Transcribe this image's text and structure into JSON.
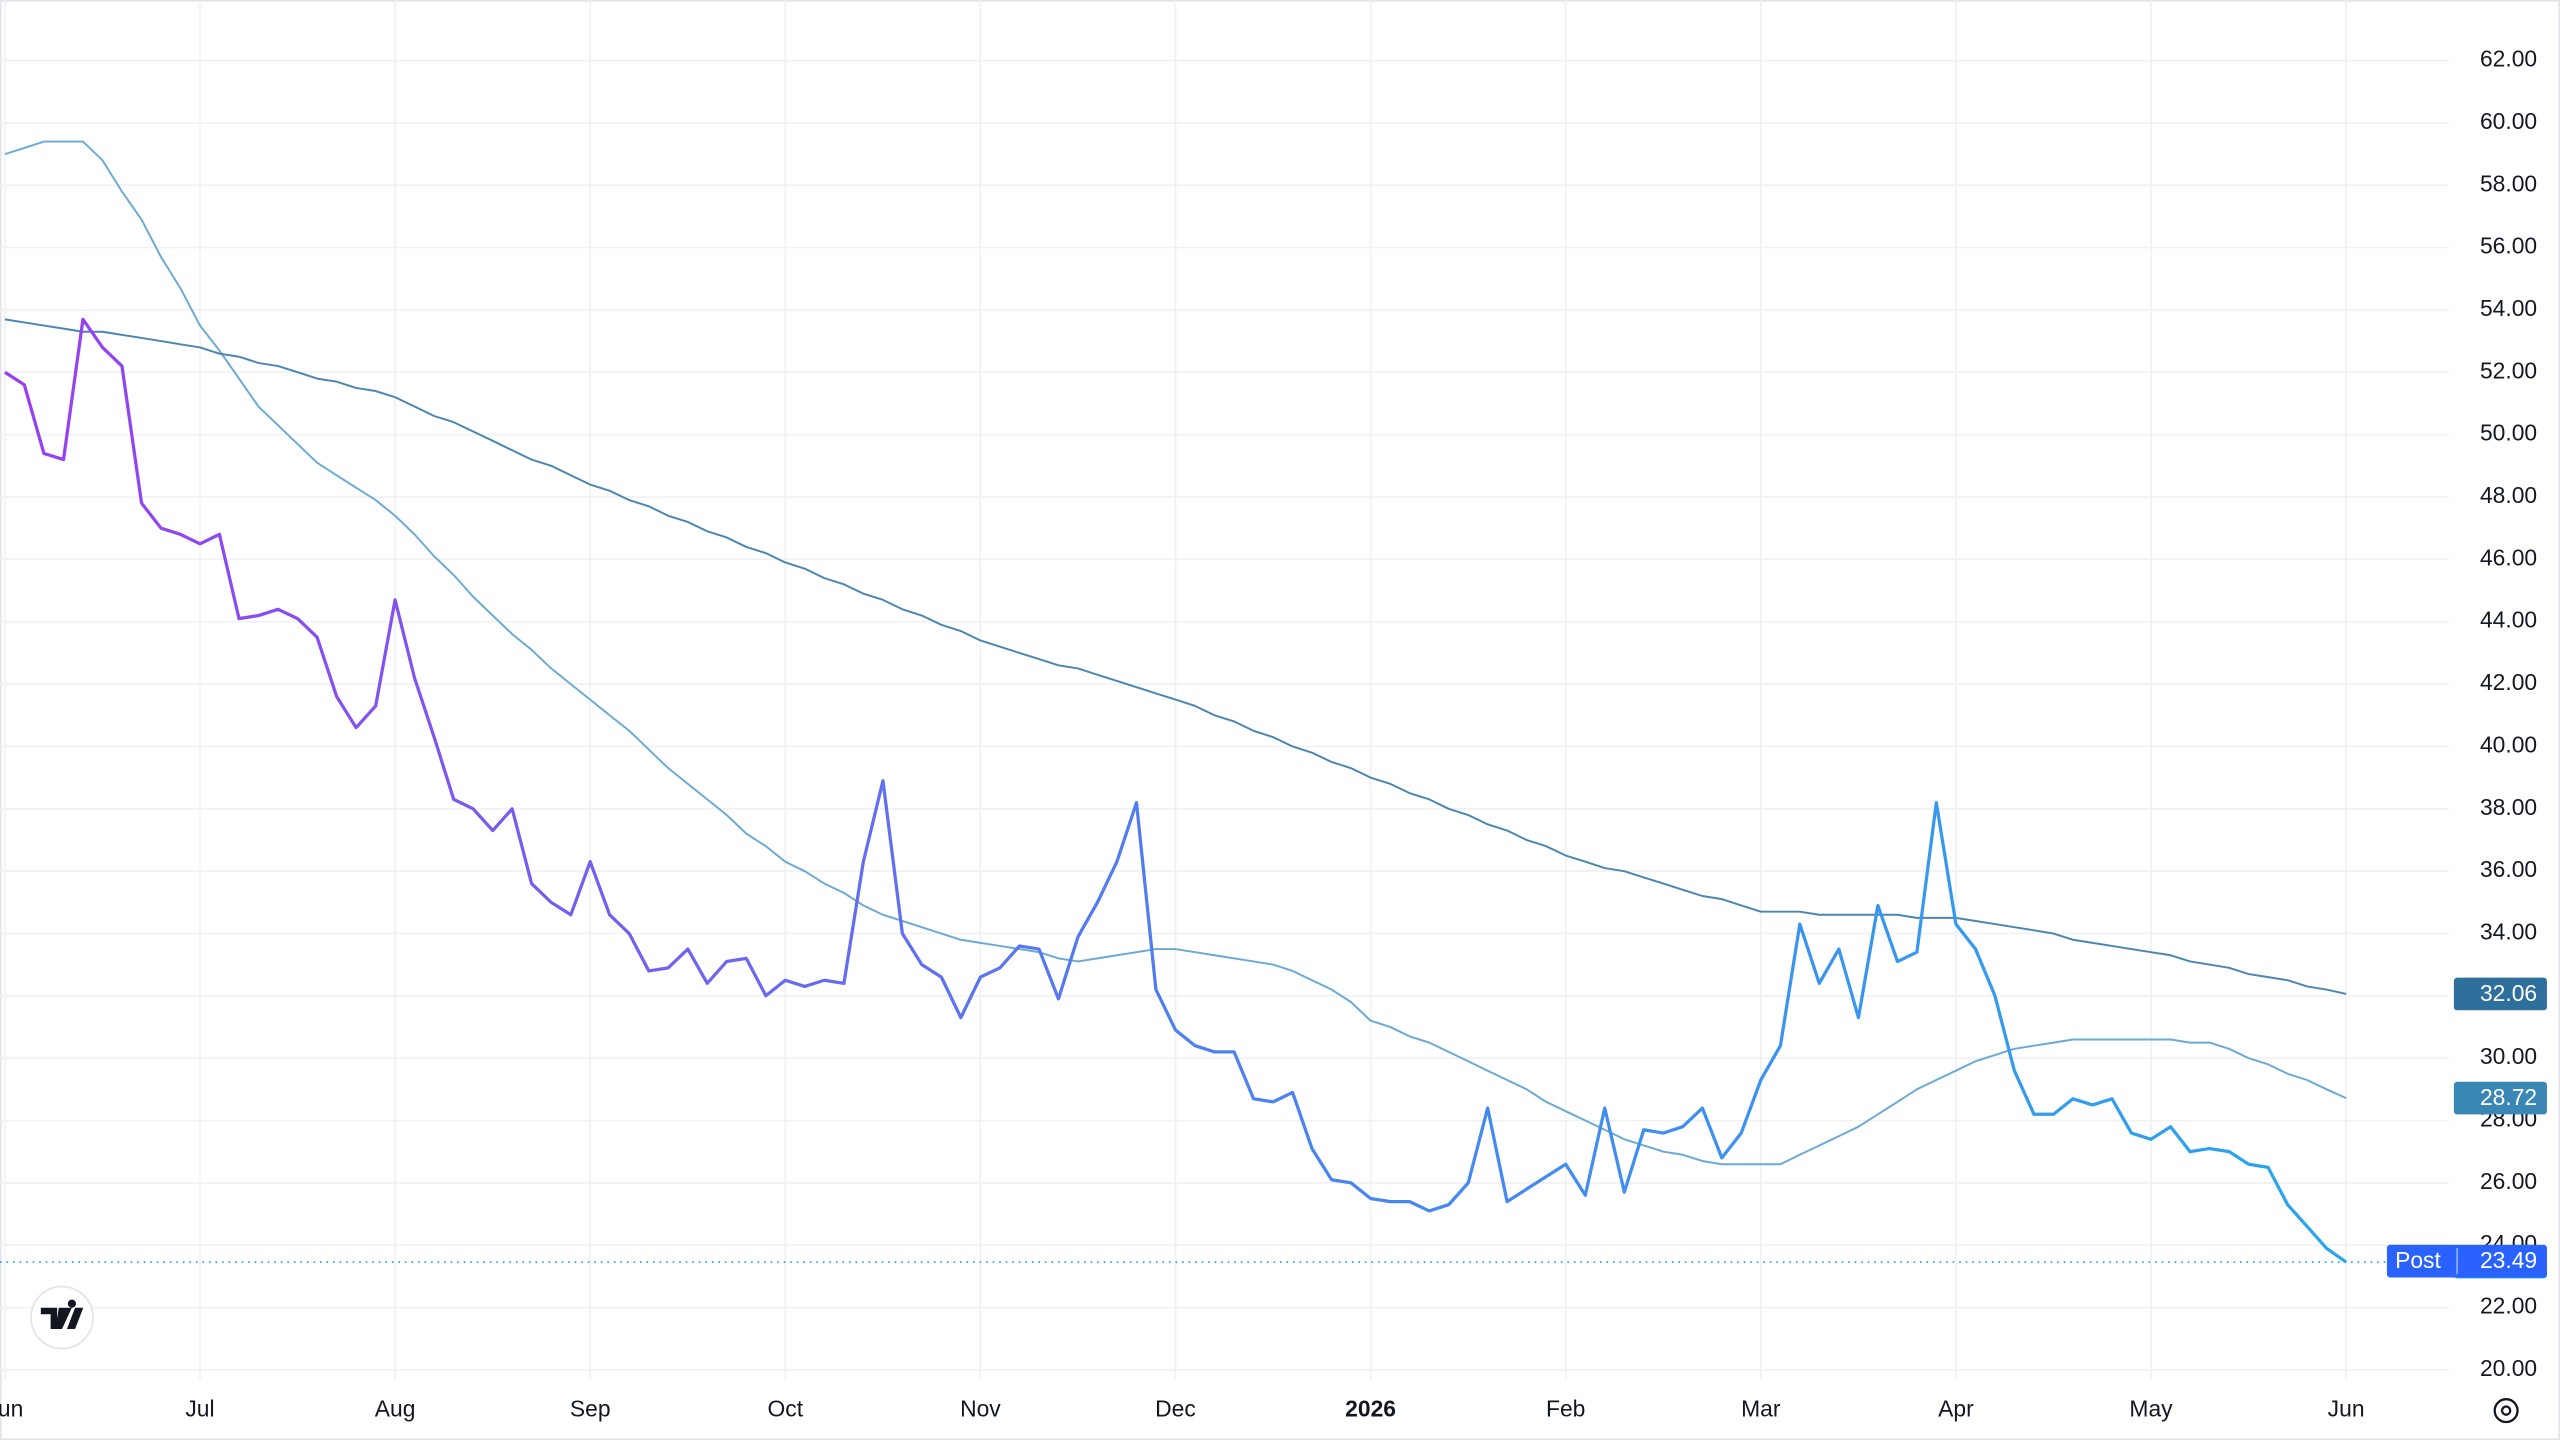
{
  "chart_data": {
    "type": "line",
    "categories": [
      "Jun",
      null,
      null,
      null,
      null,
      null,
      null,
      null,
      null,
      null,
      "Jul",
      null,
      null,
      null,
      null,
      null,
      null,
      null,
      null,
      null,
      "Aug",
      null,
      null,
      null,
      null,
      null,
      null,
      null,
      null,
      null,
      "Sep",
      null,
      null,
      null,
      null,
      null,
      null,
      null,
      null,
      null,
      "Oct",
      null,
      null,
      null,
      null,
      null,
      null,
      null,
      null,
      null,
      "Nov",
      null,
      null,
      null,
      null,
      null,
      null,
      null,
      null,
      null,
      "Dec",
      null,
      null,
      null,
      null,
      null,
      null,
      null,
      null,
      null,
      "2026",
      null,
      null,
      null,
      null,
      null,
      null,
      null,
      null,
      null,
      "Feb",
      null,
      null,
      null,
      null,
      null,
      null,
      null,
      null,
      null,
      "Mar",
      null,
      null,
      null,
      null,
      null,
      null,
      null,
      null,
      null,
      "Apr",
      null,
      null,
      null,
      null,
      null,
      null,
      null,
      null,
      null,
      "May",
      null,
      null,
      null,
      null,
      null,
      null,
      null,
      null,
      null,
      "Jun"
    ],
    "series": [
      {
        "color": "#2aa6ec",
        "gradient": [
          "#9a3ff0",
          "#4f7ff0",
          "#2aa6ec"
        ],
        "label_color": "#1aa3e8",
        "values": [
          52.0,
          51.6,
          49.4,
          49.2,
          53.7,
          52.8,
          52.2,
          47.8,
          47.0,
          46.8,
          46.5,
          46.8,
          44.1,
          44.2,
          44.4,
          44.1,
          43.5,
          41.6,
          40.6,
          41.3,
          44.7,
          42.2,
          40.3,
          38.3,
          38.0,
          37.3,
          38.0,
          35.6,
          35.0,
          34.6,
          36.3,
          34.6,
          34.0,
          32.8,
          32.9,
          33.5,
          32.4,
          33.1,
          33.2,
          32.0,
          32.5,
          32.3,
          32.5,
          32.4,
          36.3,
          38.9,
          34.0,
          33.0,
          32.6,
          31.3,
          32.6,
          32.9,
          33.6,
          33.5,
          31.9,
          33.9,
          35.0,
          36.3,
          38.2,
          32.2,
          30.9,
          30.4,
          30.2,
          30.2,
          28.7,
          28.6,
          28.9,
          27.1,
          26.1,
          26.0,
          25.5,
          25.4,
          25.4,
          25.1,
          25.3,
          26.0,
          28.4,
          25.4,
          25.8,
          26.2,
          26.6,
          25.6,
          28.4,
          25.7,
          27.7,
          27.6,
          27.8,
          28.4,
          26.8,
          27.6,
          29.3,
          30.4,
          34.3,
          32.4,
          33.5,
          31.3,
          34.9,
          33.1,
          33.4,
          38.2,
          34.3,
          33.5,
          32.0,
          29.6,
          28.2,
          28.2,
          28.7,
          28.5,
          28.7,
          27.6,
          27.4,
          27.8,
          27.0,
          27.1,
          27.0,
          26.6,
          26.5,
          25.3,
          24.6,
          23.9,
          23.46
        ]
      },
      {
        "color": "#4a86b0",
        "label_color": "#2f6f9c",
        "values": [
          53.7,
          53.6,
          53.5,
          53.4,
          53.3,
          53.3,
          53.2,
          53.1,
          53.0,
          52.9,
          52.8,
          52.6,
          52.5,
          52.3,
          52.2,
          52.0,
          51.8,
          51.7,
          51.5,
          51.4,
          51.2,
          50.9,
          50.6,
          50.4,
          50.1,
          49.8,
          49.5,
          49.2,
          49.0,
          48.7,
          48.4,
          48.2,
          47.9,
          47.7,
          47.4,
          47.2,
          46.9,
          46.7,
          46.4,
          46.2,
          45.9,
          45.7,
          45.4,
          45.2,
          44.9,
          44.7,
          44.4,
          44.2,
          43.9,
          43.7,
          43.4,
          43.2,
          43.0,
          42.8,
          42.6,
          42.5,
          42.3,
          42.1,
          41.9,
          41.7,
          41.5,
          41.3,
          41.0,
          40.8,
          40.5,
          40.3,
          40.0,
          39.8,
          39.5,
          39.3,
          39.0,
          38.8,
          38.5,
          38.3,
          38.0,
          37.8,
          37.5,
          37.3,
          37.0,
          36.8,
          36.5,
          36.3,
          36.1,
          36.0,
          35.8,
          35.6,
          35.4,
          35.2,
          35.1,
          34.9,
          34.7,
          34.7,
          34.7,
          34.6,
          34.6,
          34.6,
          34.6,
          34.6,
          34.5,
          34.5,
          34.5,
          34.4,
          34.3,
          34.2,
          34.1,
          34.0,
          33.8,
          33.7,
          33.6,
          33.5,
          33.4,
          33.3,
          33.1,
          33.0,
          32.9,
          32.7,
          32.6,
          32.5,
          32.3,
          32.2,
          32.06
        ]
      },
      {
        "color": "#6aaad4",
        "label_color": "#3a86b4",
        "values": [
          59.0,
          59.2,
          59.4,
          59.4,
          59.4,
          58.8,
          57.8,
          56.9,
          55.7,
          54.7,
          53.5,
          52.7,
          51.8,
          50.9,
          50.3,
          49.7,
          49.1,
          48.7,
          48.3,
          47.9,
          47.4,
          46.8,
          46.1,
          45.5,
          44.8,
          44.2,
          43.6,
          43.1,
          42.5,
          42.0,
          41.5,
          41.0,
          40.5,
          39.9,
          39.3,
          38.8,
          38.3,
          37.8,
          37.2,
          36.8,
          36.3,
          36.0,
          35.6,
          35.3,
          34.9,
          34.6,
          34.4,
          34.2,
          34.0,
          33.8,
          33.7,
          33.6,
          33.5,
          33.4,
          33.2,
          33.1,
          33.2,
          33.3,
          33.4,
          33.5,
          33.5,
          33.4,
          33.3,
          33.2,
          33.1,
          33.0,
          32.8,
          32.5,
          32.2,
          31.8,
          31.2,
          31.0,
          30.7,
          30.5,
          30.2,
          29.9,
          29.6,
          29.3,
          29.0,
          28.6,
          28.3,
          28.0,
          27.7,
          27.4,
          27.2,
          27.0,
          26.9,
          26.7,
          26.6,
          26.6,
          26.6,
          26.6,
          26.9,
          27.2,
          27.5,
          27.8,
          28.2,
          28.6,
          29.0,
          29.3,
          29.6,
          29.9,
          30.1,
          30.3,
          30.4,
          30.5,
          30.6,
          30.6,
          30.6,
          30.6,
          30.6,
          30.6,
          30.5,
          30.5,
          30.3,
          30.0,
          29.8,
          29.5,
          29.3,
          29.0,
          28.72
        ]
      }
    ],
    "post_label": "Post",
    "post_value": 23.49,
    "post_color": "#2962ff",
    "ylim": [
      19.69,
      63.89
    ],
    "yticks": [
      {
        "value": 20,
        "label": "20.00"
      },
      {
        "value": 22,
        "label": "22.00"
      },
      {
        "value": 24,
        "label": "24.00"
      },
      {
        "value": 26,
        "label": "26.00"
      },
      {
        "value": 28,
        "label": "28.00"
      },
      {
        "value": 30,
        "label": "30.00"
      },
      {
        "value": 32,
        "label": "32.00"
      },
      {
        "value": 34,
        "label": "34.00"
      },
      {
        "value": 36,
        "label": "36.00"
      },
      {
        "value": 38,
        "label": "38.00"
      },
      {
        "value": 40,
        "label": "40.00"
      },
      {
        "value": 42,
        "label": "42.00"
      },
      {
        "value": 44,
        "label": "44.00"
      },
      {
        "value": 46,
        "label": "46.00"
      },
      {
        "value": 48,
        "label": "48.00"
      },
      {
        "value": 50,
        "label": "50.00"
      },
      {
        "value": 52,
        "label": "52.00"
      },
      {
        "value": 54,
        "label": "54.00"
      },
      {
        "value": 56,
        "label": "56.00"
      },
      {
        "value": 58,
        "label": "58.00"
      },
      {
        "value": 60,
        "label": "60.00"
      },
      {
        "value": 62,
        "label": "62.00"
      }
    ],
    "grid": true
  }
}
